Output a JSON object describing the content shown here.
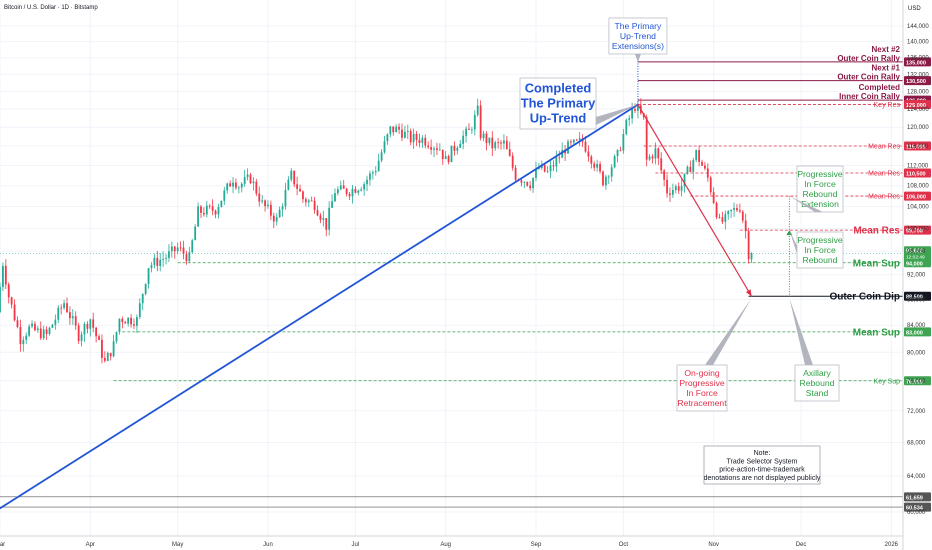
{
  "header": {
    "title": "Bitcoin / U.S. Dollar · 1D · Bitstamp",
    "currency": "USD"
  },
  "colors": {
    "up": "#22ab94",
    "down": "#f23645",
    "trend": "#2155d6",
    "retrace": "#e0314a",
    "green": "#2e9e46",
    "red": "#e0314a",
    "maroon": "#8b1a46",
    "dark": "#131722",
    "grid": "#f0f3fa",
    "label_bg_green": "#3fa452"
  },
  "chart_data": {
    "type": "candlestick",
    "x_axis": {
      "start": "2025-03-01",
      "end": "2026-01-05",
      "tick_labels": [
        {
          "date": "2025-03-01",
          "label": "Mar"
        },
        {
          "date": "2025-04-01",
          "label": "Apr"
        },
        {
          "date": "2025-05-01",
          "label": "May"
        },
        {
          "date": "2025-06-01",
          "label": "Jun"
        },
        {
          "date": "2025-07-01",
          "label": "Jul"
        },
        {
          "date": "2025-08-01",
          "label": "Aug"
        },
        {
          "date": "2025-09-01",
          "label": "Sep"
        },
        {
          "date": "2025-10-01",
          "label": "Oct"
        },
        {
          "date": "2025-11-01",
          "label": "Nov"
        },
        {
          "date": "2025-12-01",
          "label": "Dec"
        },
        {
          "date": "2026-01-01",
          "label": "2026"
        }
      ]
    },
    "y_axis": {
      "scale": "log",
      "range": [
        59000,
        150000
      ],
      "tick_values": [
        60000,
        64000,
        68000,
        72000,
        76000,
        80000,
        84000,
        88000,
        92000,
        96000,
        100000,
        104000,
        108000,
        112000,
        116000,
        120000,
        124000,
        128000,
        132000,
        136000,
        140000,
        144000
      ],
      "tick_labels": [
        "60,000",
        "64,000",
        "68,000",
        "72,000",
        "76,000",
        "80,000",
        "84,000",
        "88,000",
        "92,000",
        "96,000",
        "100,000",
        "104,000",
        "108,000",
        "112,000",
        "116,000",
        "120,000",
        "124,000",
        "128,000",
        "132,000",
        "136,000",
        "140,000",
        "144,000"
      ]
    },
    "price_path": [
      [
        "2025-03-01",
        86000
      ],
      [
        "2025-03-03",
        94000
      ],
      [
        "2025-03-05",
        88500
      ],
      [
        "2025-03-09",
        82000
      ],
      [
        "2025-03-12",
        83500
      ],
      [
        "2025-03-18",
        82500
      ],
      [
        "2025-03-24",
        87500
      ],
      [
        "2025-03-29",
        82500
      ],
      [
        "2025-04-02",
        85000
      ],
      [
        "2025-04-07",
        78500
      ],
      [
        "2025-04-10",
        81000
      ],
      [
        "2025-04-12",
        85000
      ],
      [
        "2025-04-18",
        84800
      ],
      [
        "2025-04-22",
        93500
      ],
      [
        "2025-04-28",
        95000
      ],
      [
        "2025-05-02",
        96500
      ],
      [
        "2025-05-06",
        94800
      ],
      [
        "2025-05-09",
        103000
      ],
      [
        "2025-05-15",
        103500
      ],
      [
        "2025-05-21",
        109500
      ],
      [
        "2025-05-23",
        108000
      ],
      [
        "2025-05-27",
        109500
      ],
      [
        "2025-05-31",
        104500
      ],
      [
        "2025-06-05",
        101500
      ],
      [
        "2025-06-10",
        110000
      ],
      [
        "2025-06-14",
        105500
      ],
      [
        "2025-06-18",
        104500
      ],
      [
        "2025-06-22",
        100500
      ],
      [
        "2025-06-25",
        107000
      ],
      [
        "2025-06-30",
        107000
      ],
      [
        "2025-07-05",
        108500
      ],
      [
        "2025-07-09",
        111500
      ],
      [
        "2025-07-14",
        119500
      ],
      [
        "2025-07-17",
        119500
      ],
      [
        "2025-07-21",
        117500
      ],
      [
        "2025-07-25",
        117500
      ],
      [
        "2025-07-31",
        115500
      ],
      [
        "2025-08-02",
        113000
      ],
      [
        "2025-08-07",
        117500
      ],
      [
        "2025-08-10",
        119000
      ],
      [
        "2025-08-13",
        123500
      ],
      [
        "2025-08-14",
        118500
      ],
      [
        "2025-08-18",
        116000
      ],
      [
        "2025-08-22",
        116500
      ],
      [
        "2025-08-26",
        110000
      ],
      [
        "2025-08-31",
        108500
      ],
      [
        "2025-09-03",
        111500
      ],
      [
        "2025-09-06",
        110500
      ],
      [
        "2025-09-12",
        115500
      ],
      [
        "2025-09-18",
        117000
      ],
      [
        "2025-09-22",
        112500
      ],
      [
        "2025-09-25",
        109000
      ],
      [
        "2025-09-30",
        114000
      ],
      [
        "2025-10-03",
        120500
      ],
      [
        "2025-10-06",
        124700
      ],
      [
        "2025-10-09",
        121500
      ],
      [
        "2025-10-10",
        113000
      ],
      [
        "2025-10-13",
        115000
      ],
      [
        "2025-10-17",
        107000
      ],
      [
        "2025-10-22",
        108000
      ],
      [
        "2025-10-27",
        114500
      ],
      [
        "2025-10-31",
        109500
      ],
      [
        "2025-11-04",
        101000
      ],
      [
        "2025-11-06",
        101500
      ],
      [
        "2025-11-08",
        103000
      ],
      [
        "2025-11-11",
        104000
      ],
      [
        "2025-11-13",
        99500
      ],
      [
        "2025-11-14",
        95622
      ]
    ],
    "last_price": {
      "value": 95622,
      "label": "95,622",
      "sub_label": "12:02:49"
    },
    "levels": [
      {
        "value": 135000,
        "label": "135,000",
        "style": "solid",
        "color": "#8b1a46",
        "text_top": "Next #2",
        "text_bottom": "Outer Coin Rally",
        "from": "2025-10-06"
      },
      {
        "value": 130500,
        "label": "130,500",
        "style": "solid",
        "color": "#8b1a46",
        "text_top": "Next #1",
        "text_bottom": "Outer Coin Rally",
        "from": "2025-10-06"
      },
      {
        "value": 126000,
        "label": "126,000",
        "style": "solid",
        "color": "#8b1a46",
        "text_top": "Completed",
        "text_bottom": "Inner Coin Rally",
        "from": "2025-10-06"
      },
      {
        "value": 125000,
        "label": "125,000",
        "style": "dashed",
        "color": "#e0314a",
        "text": "Key Res",
        "from": "2025-10-06"
      },
      {
        "value": 116000,
        "label": "116,000",
        "style": "dashed",
        "color": "#e0314a",
        "text": "Mean Res",
        "from": "2025-10-08"
      },
      {
        "value": 110500,
        "label": "110,500",
        "style": "dashed",
        "color": "#e0314a",
        "text": "Mean Res",
        "from": "2025-10-12"
      },
      {
        "value": 106000,
        "label": "106,000",
        "style": "dashed",
        "color": "#e0314a",
        "text": "Mean Res",
        "from": "2025-10-24"
      },
      {
        "value": 99700,
        "label": "99,700",
        "style": "dashed",
        "color": "#e0314a",
        "text": "Mean Res",
        "from": "2025-11-10",
        "big": true
      },
      {
        "value": 94000,
        "label": "94,000",
        "style": "dashed",
        "color": "#2e9e46",
        "text": "Mean Sup",
        "from": "2025-05-01",
        "big": true
      },
      {
        "value": 88500,
        "label": "88,500",
        "style": "solid",
        "color": "#131722",
        "text": "Outer Coin Dip",
        "from": "2025-11-13",
        "big": true
      },
      {
        "value": 83000,
        "label": "83,000",
        "style": "dashed",
        "color": "#2e9e46",
        "text": "Mean Sup",
        "from": "2025-04-12",
        "big": true
      },
      {
        "value": 76000,
        "label": "76,000",
        "style": "dashed",
        "color": "#2e9e46",
        "text": "Key Sup",
        "from": "2025-04-09"
      },
      {
        "value": 61659,
        "label": "61,659",
        "style": "thin",
        "color": "#555555",
        "from": "2025-03-01"
      },
      {
        "value": 60534,
        "label": "60,534",
        "style": "thin",
        "color": "#555555",
        "from": "2025-03-01"
      }
    ],
    "trend_line": {
      "from": [
        "2025-02-27",
        60000
      ],
      "to": [
        "2025-10-06",
        125000
      ]
    },
    "retracement_arrow": {
      "from": [
        "2025-10-06",
        125000
      ],
      "to": [
        "2025-11-14",
        88500
      ]
    },
    "callouts": [
      {
        "id": "primary-up-trend-extensions",
        "lines": [
          "The Primary",
          "Up-Trend",
          "Extensions(s)"
        ],
        "color": "#2155d6",
        "size": "small",
        "anchor": [
          "2025-10-06",
          135000
        ]
      },
      {
        "id": "completed-primary-up-trend",
        "lines": [
          "Completed",
          "The Primary",
          "Up-Trend"
        ],
        "color": "#2155d6",
        "size": "large",
        "anchor": [
          "2025-10-06",
          125000
        ]
      },
      {
        "id": "progressive-rebound-extension",
        "lines": [
          "Progressive",
          "In Force",
          "Rebound",
          "Extension"
        ],
        "color": "#2e9e46",
        "size": "small",
        "anchor": [
          "2025-11-27",
          106000
        ]
      },
      {
        "id": "progressive-rebound",
        "lines": [
          "Progressive",
          "In Force",
          "Rebound"
        ],
        "color": "#2e9e46",
        "size": "small",
        "anchor": [
          "2025-11-27",
          99700
        ]
      },
      {
        "id": "on-going-retracement",
        "lines": [
          "On-going",
          "Progressive",
          "In Force",
          "Retracement"
        ],
        "color": "#e0314a",
        "size": "small",
        "anchor": [
          "2025-11-14",
          88500
        ]
      },
      {
        "id": "axillary-rebound-stand",
        "lines": [
          "Axillary",
          "Rebound",
          "Stand"
        ],
        "color": "#2e9e46",
        "size": "small",
        "anchor": [
          "2025-11-27",
          88500
        ]
      }
    ],
    "note": {
      "lines": [
        "Note:",
        "Trade Selector System",
        "price-action-time-trademark",
        "denotations are not displayed publicly"
      ]
    }
  }
}
